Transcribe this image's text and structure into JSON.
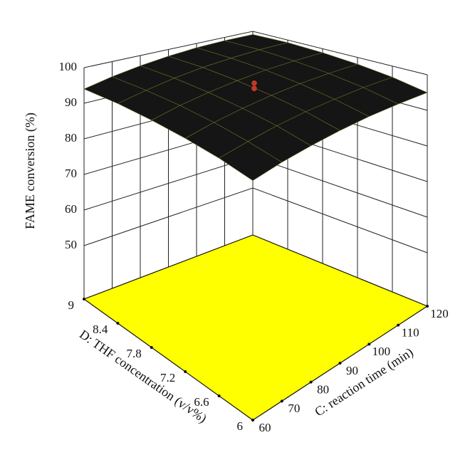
{
  "chart_data": {
    "type": "surface",
    "xlabel": "C: reaction time (min)",
    "ylabel": "D: THF concentration (v/v%)",
    "zlabel": "FAME conversion (%)",
    "xlim": [
      60,
      120
    ],
    "xticks": [
      60,
      70,
      80,
      90,
      100,
      110,
      120
    ],
    "ylim": [
      6,
      9
    ],
    "yticks": [
      6,
      6.6,
      7.2,
      7.8,
      8.4,
      9
    ],
    "zlim": [
      35,
      100
    ],
    "zticks": [
      50,
      60,
      70,
      80,
      90,
      100
    ],
    "surface": {
      "z": [
        [
          93.0,
          94.2,
          95.0,
          95.5,
          95.7,
          95.5,
          95.0
        ],
        [
          94.2,
          95.4,
          96.4,
          97.0,
          97.2,
          97.2,
          96.8
        ],
        [
          94.8,
          96.2,
          97.2,
          97.9,
          98.3,
          98.3,
          98.0
        ],
        [
          95.0,
          96.5,
          97.6,
          98.4,
          98.9,
          99.0,
          98.8
        ],
        [
          94.8,
          96.3,
          97.6,
          98.5,
          99.0,
          99.3,
          99.2
        ],
        [
          94.0,
          95.7,
          97.0,
          98.0,
          98.7,
          99.0,
          99.0
        ]
      ]
    },
    "points": {
      "c": [
        90,
        90
      ],
      "d": [
        7.5,
        7.5
      ],
      "z": [
        99.5,
        98.0
      ]
    },
    "surface_color": "#151515",
    "mesh_color": "#6d6a2a",
    "floor_color": "#ffff00",
    "point_color": "#c0392b"
  }
}
